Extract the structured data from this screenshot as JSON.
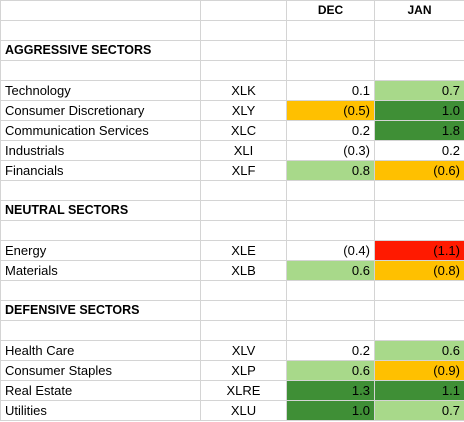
{
  "columns": {
    "dec": "DEC",
    "jan": "JAN"
  },
  "sections": [
    {
      "title": "AGGRESSIVE SECTORS",
      "rows": [
        {
          "name": "Technology",
          "ticker": "XLK",
          "dec": "0.1",
          "jan": "0.7"
        },
        {
          "name": "Consumer Discretionary",
          "ticker": "XLY",
          "dec": "(0.5)",
          "jan": "1.0"
        },
        {
          "name": "Communication Services",
          "ticker": "XLC",
          "dec": "0.2",
          "jan": "1.8"
        },
        {
          "name": "Industrials",
          "ticker": "XLI",
          "dec": "(0.3)",
          "jan": "0.2"
        },
        {
          "name": "Financials",
          "ticker": "XLF",
          "dec": "0.8",
          "jan": "(0.6)"
        }
      ]
    },
    {
      "title": "NEUTRAL SECTORS",
      "rows": [
        {
          "name": "Energy",
          "ticker": "XLE",
          "dec": "(0.4)",
          "jan": "(1.1)"
        },
        {
          "name": "Materials",
          "ticker": "XLB",
          "dec": "0.6",
          "jan": "(0.8)"
        }
      ]
    },
    {
      "title": "DEFENSIVE SECTORS",
      "rows": [
        {
          "name": "Health Care",
          "ticker": "XLV",
          "dec": "0.2",
          "jan": "0.6"
        },
        {
          "name": "Consumer Staples",
          "ticker": "XLP",
          "dec": "0.6",
          "jan": "(0.9)"
        },
        {
          "name": "Real Estate",
          "ticker": "XLRE",
          "dec": "1.3",
          "jan": "1.1"
        },
        {
          "name": "Utilities",
          "ticker": "XLU",
          "dec": "1.0",
          "jan": "0.7"
        }
      ]
    }
  ],
  "colors": {
    "light_green": "#a8d98a",
    "dark_green": "#3f8f36",
    "orange": "#ffc000",
    "red": "#ff1a00"
  }
}
